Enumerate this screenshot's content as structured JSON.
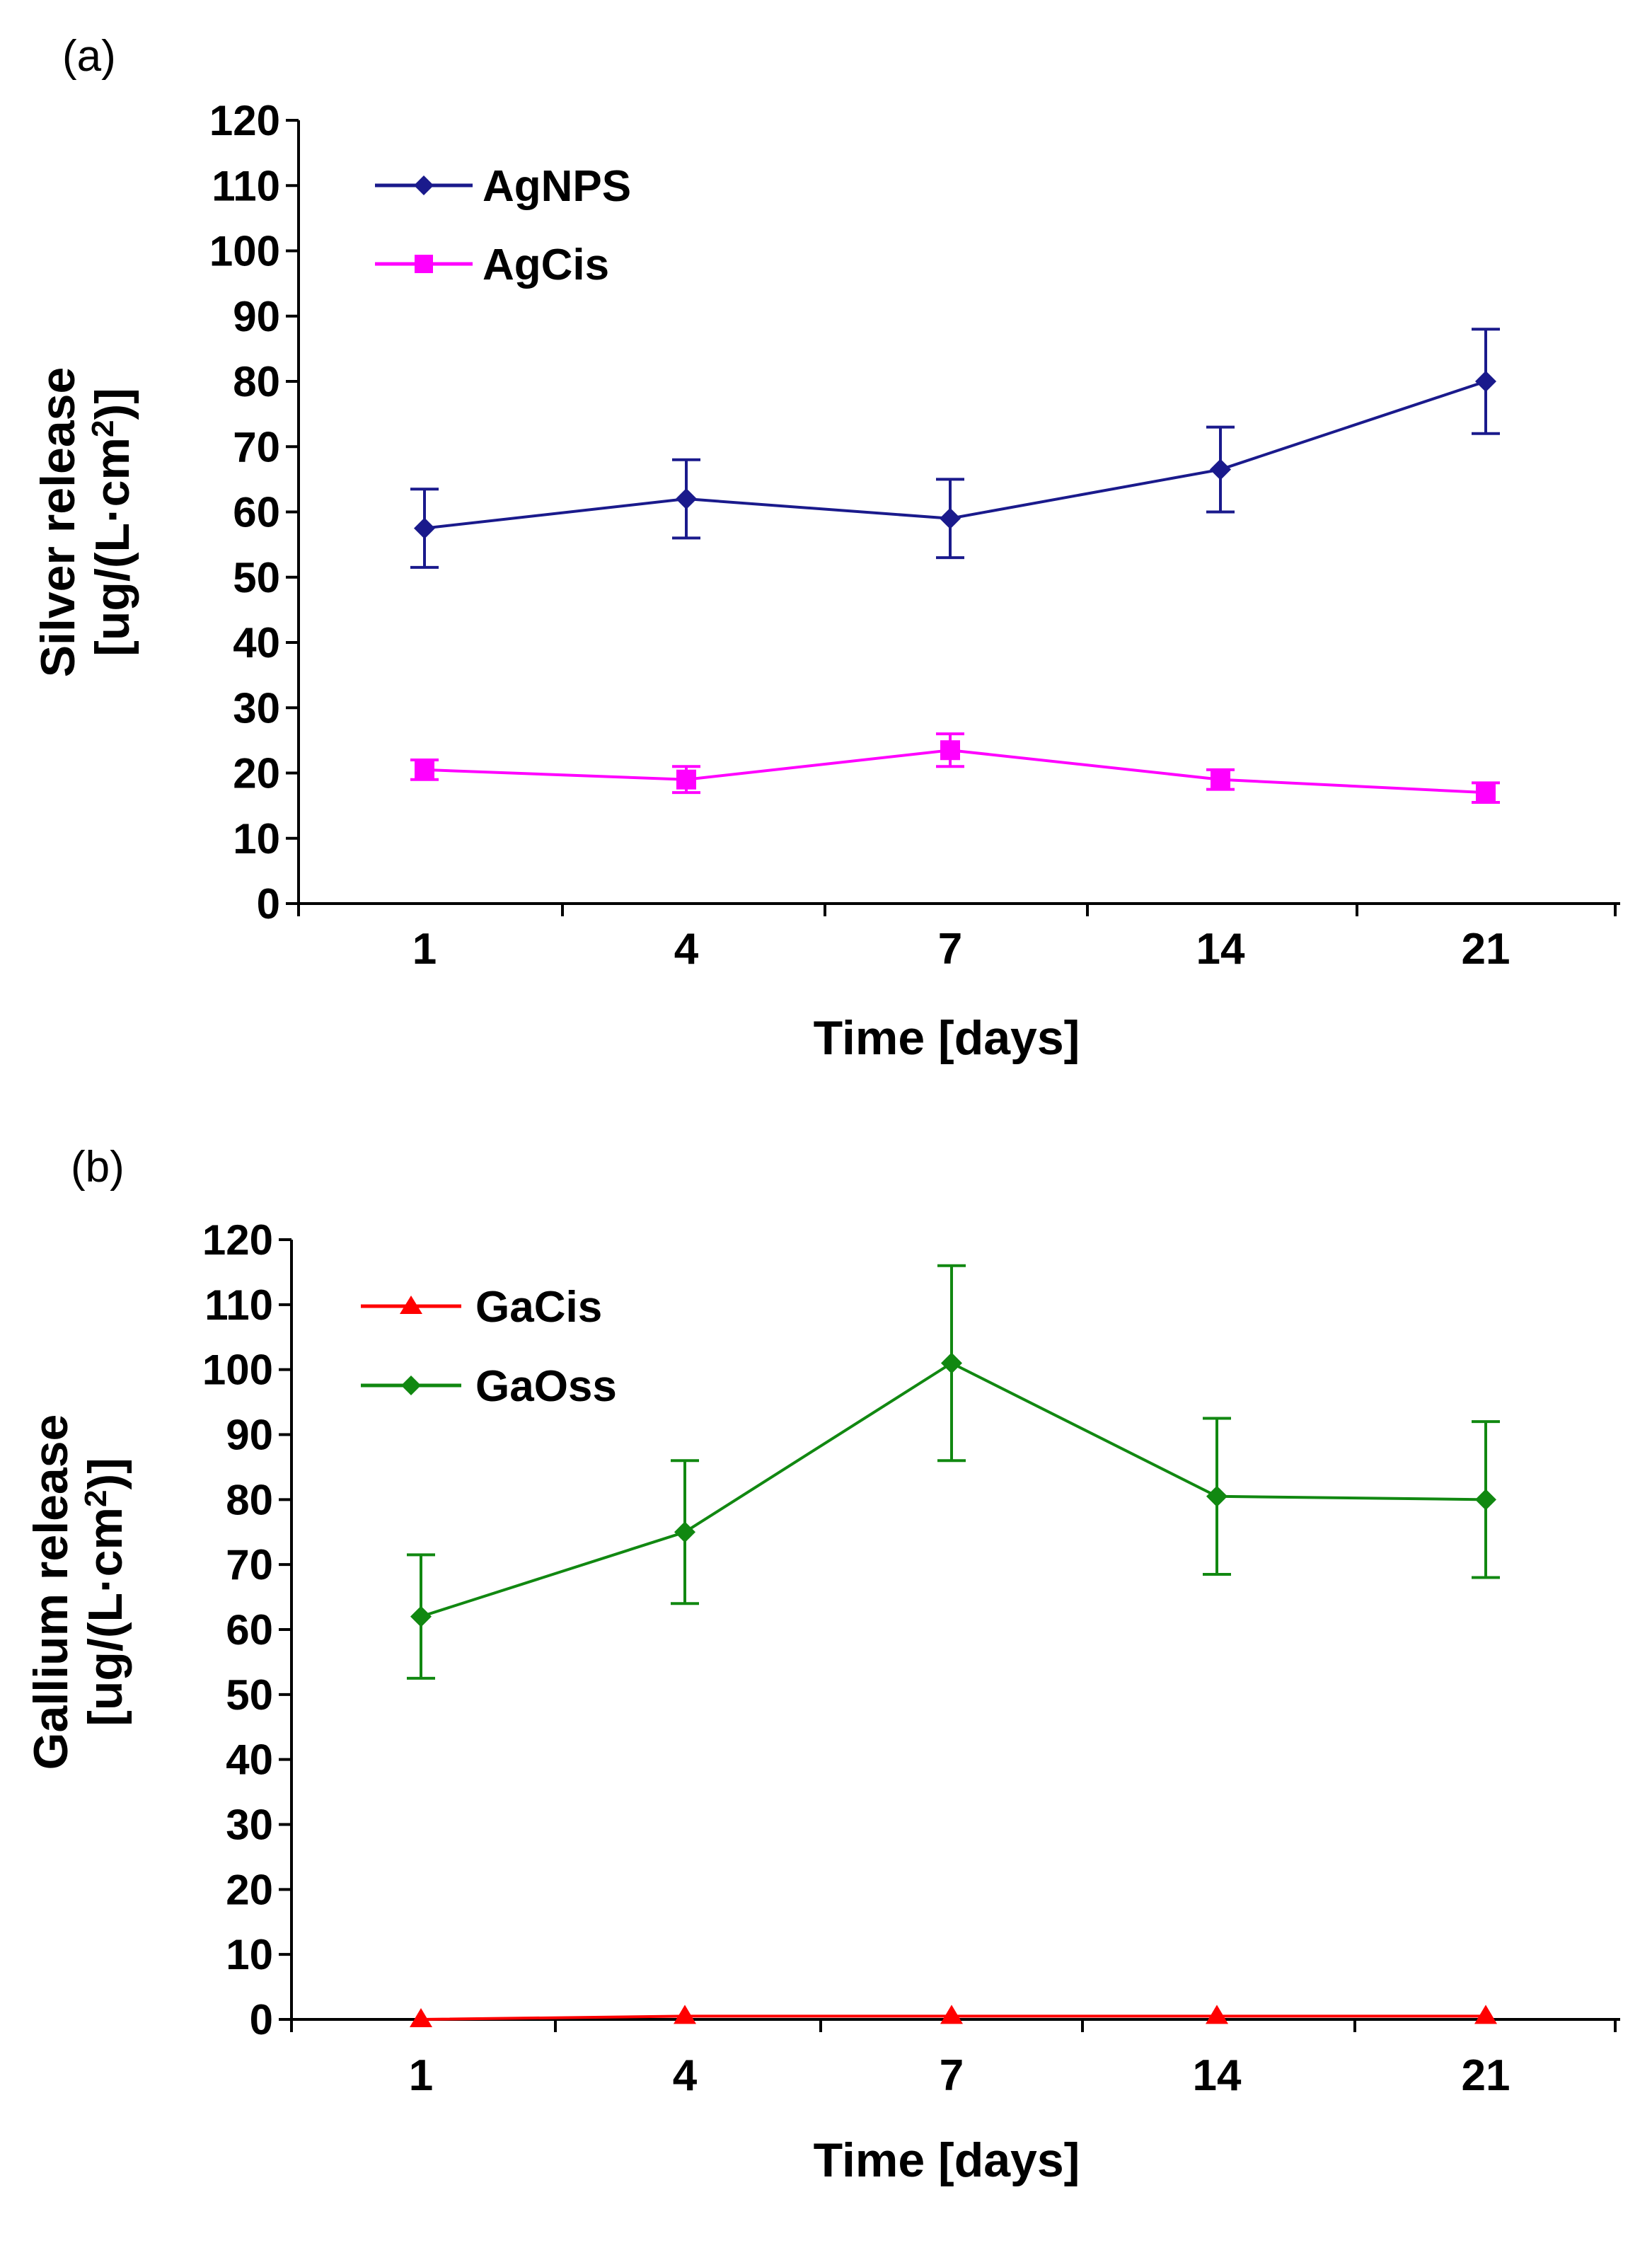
{
  "chart_data": [
    {
      "type": "line",
      "panel_label": "(a)",
      "title": "",
      "xlabel": "Time [days]",
      "ylabel_line1": "Silver release",
      "ylabel_line2_pre": "[ug/(L·cm",
      "ylabel_sup": "2",
      "ylabel_line2_post": ")]",
      "categories": [
        "1",
        "4",
        "7",
        "14",
        "21"
      ],
      "ylim": [
        0,
        120
      ],
      "yticks": [
        "0",
        "10",
        "20",
        "30",
        "40",
        "50",
        "60",
        "70",
        "80",
        "90",
        "100",
        "110",
        "120"
      ],
      "grid": false,
      "legend_position": "top-left",
      "series": [
        {
          "name": "AgNPS",
          "color": "#1a1a8c",
          "marker": "diamond",
          "values": [
            57.5,
            62,
            59,
            66.5,
            80
          ],
          "errors": [
            6,
            6,
            6,
            6.5,
            8
          ]
        },
        {
          "name": "AgCis",
          "color": "#ff00ff",
          "marker": "square",
          "values": [
            20.5,
            19,
            23.5,
            19,
            17
          ],
          "errors": [
            1.5,
            2,
            2.5,
            1.5,
            1.5
          ]
        }
      ]
    },
    {
      "type": "line",
      "panel_label": "(b)",
      "title": "",
      "xlabel": "Time [days]",
      "ylabel_line1": "Gallium release",
      "ylabel_line2_pre": "[ug/(L·cm",
      "ylabel_sup": "2",
      "ylabel_line2_post": ")]",
      "categories": [
        "1",
        "4",
        "7",
        "14",
        "21"
      ],
      "ylim": [
        0,
        120
      ],
      "yticks": [
        "0",
        "10",
        "20",
        "30",
        "40",
        "50",
        "60",
        "70",
        "80",
        "90",
        "100",
        "110",
        "120"
      ],
      "grid": false,
      "legend_position": "top-left",
      "series": [
        {
          "name": "GaCis",
          "color": "#ff0000",
          "marker": "triangle",
          "values": [
            0,
            0.5,
            0.5,
            0.5,
            0.5
          ],
          "errors": [
            0,
            0,
            0,
            0,
            0
          ]
        },
        {
          "name": "GaOss",
          "color": "#118811",
          "marker": "diamond",
          "values": [
            62,
            75,
            101,
            80.5,
            80
          ],
          "errors": [
            9.5,
            11,
            15,
            12,
            12
          ]
        }
      ]
    }
  ]
}
